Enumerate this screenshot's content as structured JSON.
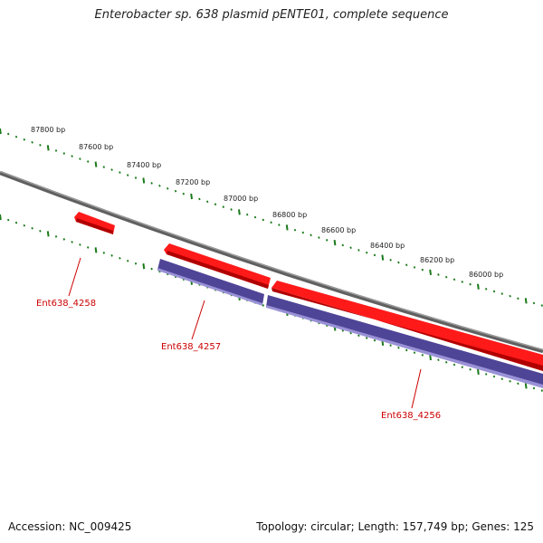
{
  "header": {
    "title": "Enterobacter sp. 638 plasmid pENTE01, complete sequence"
  },
  "footer": {
    "accession": "Accession: NC_009425",
    "summary": "Topology: circular; Length: 157,749 bp; Genes: 125"
  },
  "scale": {
    "tick_labels": [
      "87800 bp",
      "87600 bp",
      "87400 bp",
      "87200 bp",
      "87000 bp",
      "86800 bp",
      "86600 bp",
      "86400 bp",
      "86200 bp",
      "86000 bp"
    ]
  },
  "genes": [
    {
      "name": "Ent638_4258",
      "strand": "forward"
    },
    {
      "name": "Ent638_4257",
      "strand": "forward"
    },
    {
      "name": "Ent638_4256",
      "strand": "forward"
    }
  ],
  "colors": {
    "backbone": "#808080",
    "forward_gene": "#ff0000",
    "reverse_gene": "#4f4597",
    "tick": "#1a7a1a",
    "label": "#cc0000"
  }
}
